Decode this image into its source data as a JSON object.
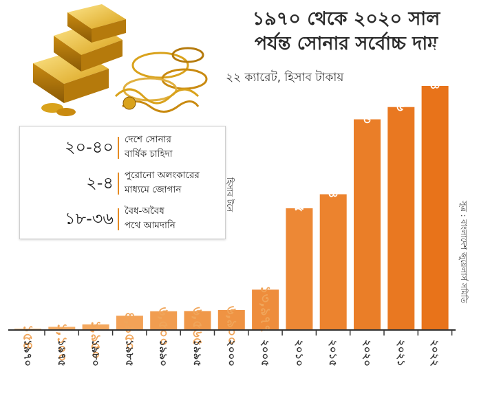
{
  "title_line1": "১৯৭০ থেকে ২০২০ সাল",
  "title_line2": "পর্যন্ত সোনার সর্বোচ্চ দাম",
  "subtitle": "২২ ক্যারেট, হিসাব টাকায়",
  "source": "সূত্র : বাংলাদেশ জুয়েলার্স সমিতি",
  "infobox": {
    "unit": "হিসাব টনে",
    "rows": [
      {
        "value": "২০-৪০",
        "desc_line1": "দেশে সোনার",
        "desc_line2": "বার্ষিক চাহিদা"
      },
      {
        "value": "২-৪",
        "desc_line1": "পুরোনো অলংকারের",
        "desc_line2": "মাধ্যমে জোগান"
      },
      {
        "value": "১৮-৩৬",
        "desc_line1": "বৈধ-অবৈধ",
        "desc_line2": "পথে আমদানি"
      }
    ]
  },
  "colors": {
    "bar_light": "#f6b26b",
    "bar_dark": "#e8731a",
    "label_light": "#f0a55a",
    "axis": "#333333",
    "accent": "#e58a22"
  },
  "icons": [
    "gold-bars-icon",
    "gold-jewelry-icon"
  ],
  "chart_data": {
    "type": "bar",
    "title": "১৯৭০ থেকে ২০২০ সাল পর্যন্ত সোনার সর্বোচ্চ দাম",
    "subtitle": "২২ ক্যারেট, হিসাব টাকায়",
    "categories": [
      "১৯৭০",
      "১৯৭৫",
      "১৯৮০",
      "১৯৮৫",
      "১৯৯০",
      "১৯৯৫",
      "২০০০",
      "২০০৫",
      "২০১০",
      "২০১৫",
      "২০২০",
      "২০২১",
      "২০২২"
    ],
    "values": [
      154,
      1100,
      1950,
      4950,
      6500,
      6565,
      6900,
      13977,
      42165,
      47014,
      72963,
      77216,
      84534
    ],
    "value_labels": [
      "১৫৪",
      "১,১০০",
      "১,৯৫০",
      "৪,৯৫০",
      "৬,৫০০",
      "৬,৫৬৫",
      "৬,৯০০",
      "১৩,৯৭৭",
      "৪২,১৬৫",
      "৪৭,০১৪",
      "৭২,৯৬৩",
      "৭৭,২১৬",
      "৮৪,৫৩৪"
    ],
    "ylim": [
      0,
      90000
    ],
    "grid": false,
    "legend": "none"
  }
}
